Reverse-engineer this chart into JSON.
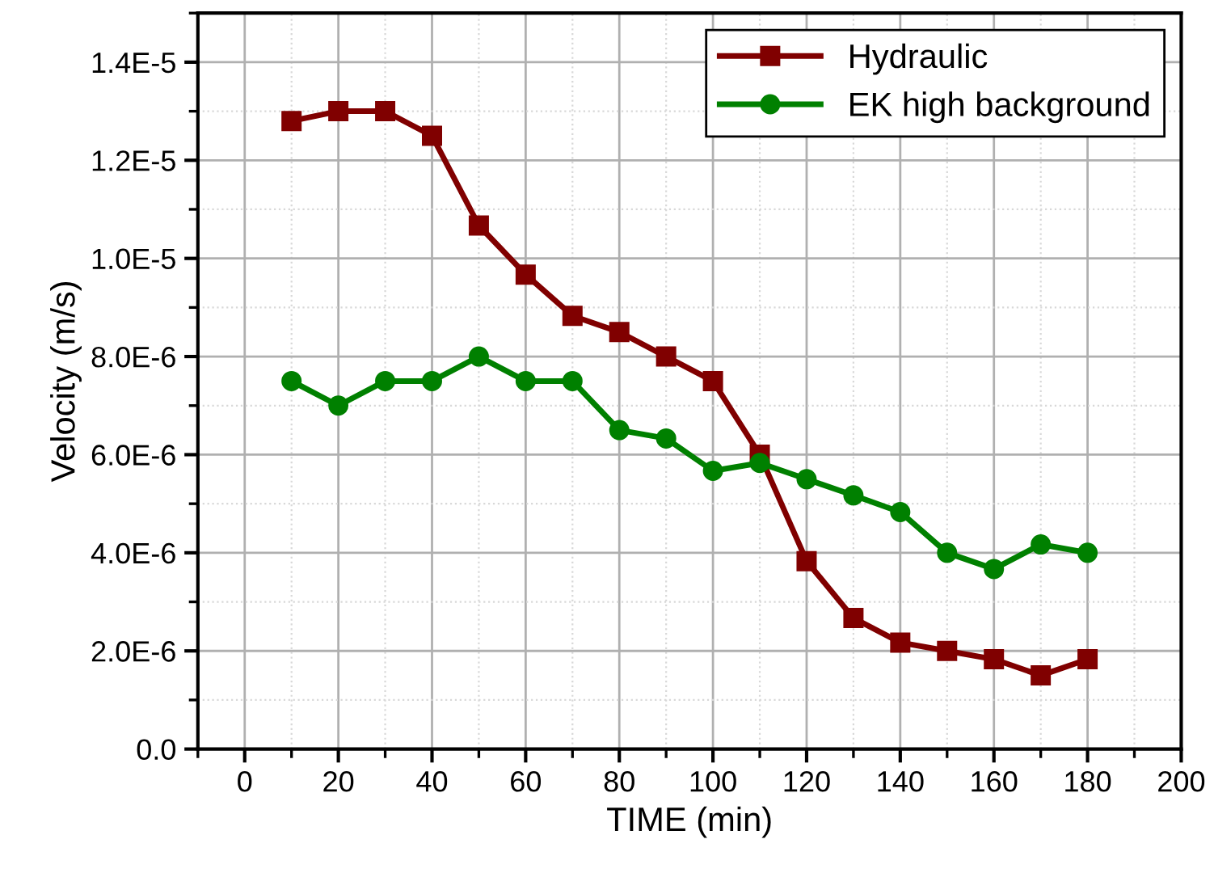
{
  "chart_data": {
    "type": "line",
    "xlabel": "TIME (min)",
    "ylabel": "Velocity (m/s)",
    "x": [
      10,
      20,
      30,
      40,
      50,
      60,
      70,
      80,
      90,
      100,
      110,
      120,
      130,
      140,
      150,
      160,
      170,
      180
    ],
    "series": [
      {
        "name": "Hydraulic",
        "color": "#800000",
        "marker": "square",
        "values": [
          1.28e-05,
          1.3e-05,
          1.3e-05,
          1.25e-05,
          1.067e-05,
          9.67e-06,
          8.83e-06,
          8.5e-06,
          8e-06,
          7.5e-06,
          6e-06,
          3.83e-06,
          2.67e-06,
          2.17e-06,
          2e-06,
          1.83e-06,
          1.5e-06,
          1.83e-06
        ]
      },
      {
        "name": "EK high background",
        "color": "#008000",
        "marker": "circle",
        "values": [
          7.5e-06,
          7e-06,
          7.5e-06,
          7.5e-06,
          8e-06,
          7.5e-06,
          7.5e-06,
          6.5e-06,
          6.33e-06,
          5.67e-06,
          5.83e-06,
          5.5e-06,
          5.17e-06,
          4.83e-06,
          4e-06,
          3.67e-06,
          4.17e-06,
          4e-06
        ]
      }
    ],
    "xlim": [
      -10,
      200
    ],
    "xticks": [
      0,
      20,
      40,
      60,
      80,
      100,
      120,
      140,
      160,
      180,
      200
    ],
    "ylim": [
      0,
      1.5e-05
    ],
    "yticks": [
      {
        "value": 0,
        "label": "0.0"
      },
      {
        "value": 2e-06,
        "label": "2.0E-6"
      },
      {
        "value": 4e-06,
        "label": "4.0E-6"
      },
      {
        "value": 6e-06,
        "label": "6.0E-6"
      },
      {
        "value": 8e-06,
        "label": "8.0E-6"
      },
      {
        "value": 1e-05,
        "label": "1.0E-5"
      },
      {
        "value": 1.2e-05,
        "label": "1.2E-5"
      },
      {
        "value": 1.4e-05,
        "label": "1.4E-5"
      }
    ],
    "grid": true,
    "legend": "top right",
    "line_style": "solid"
  }
}
